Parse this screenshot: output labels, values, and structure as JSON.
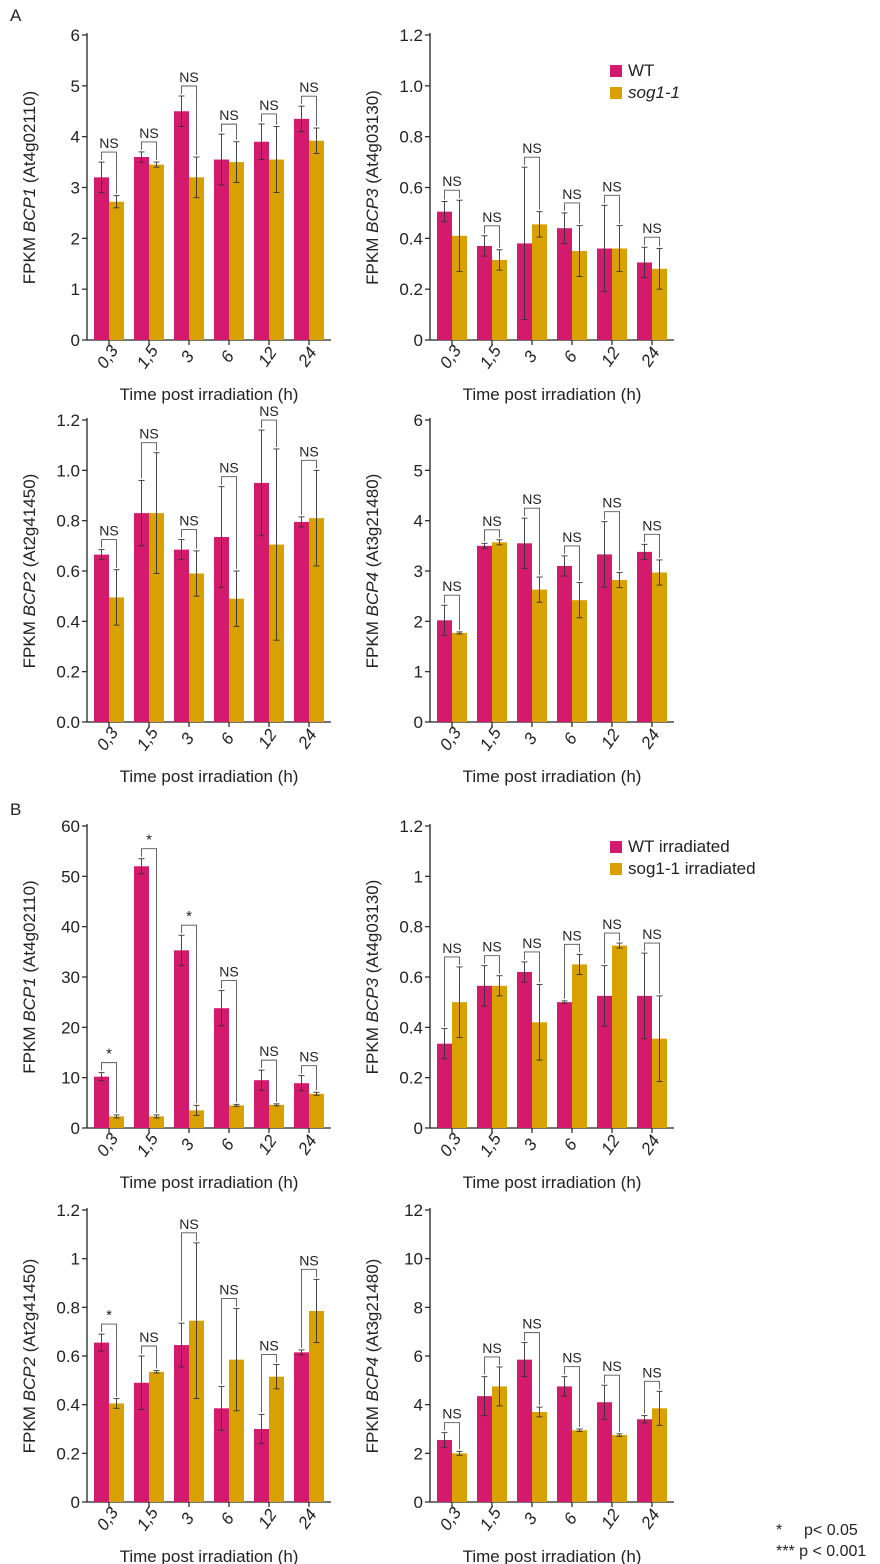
{
  "panels": {
    "A": "A",
    "B": "B"
  },
  "colors": {
    "wt": "#d41a6c",
    "sog": "#d9a100"
  },
  "legend_A": {
    "wt": "WT",
    "sog": "sog1-1"
  },
  "legend_B": {
    "wt": "WT irradiated",
    "sog": "sog1-1 irradiated"
  },
  "footnotes": [
    {
      "mark": "*",
      "text": "p< 0.05"
    },
    {
      "mark": "***",
      "text": "p < 0.001"
    }
  ],
  "chart_data": [
    {
      "type": "bar",
      "panel": "A",
      "categories": [
        "0,3",
        "1,5",
        "3",
        "6",
        "12",
        "24"
      ],
      "xlabel": "Time post irradiation (h)",
      "ylabel": {
        "pre": "FPKM ",
        "gene": "BCP1",
        "post": " (At4g02110)"
      },
      "ylim": [
        0,
        6
      ],
      "yticks": [
        "0",
        "1",
        "2",
        "3",
        "4",
        "5",
        "6"
      ],
      "series": [
        {
          "name": "WT",
          "values": [
            3.2,
            3.6,
            4.5,
            3.55,
            3.9,
            4.35
          ],
          "err": [
            0.3,
            0.1,
            0.3,
            0.5,
            0.35,
            0.25
          ]
        },
        {
          "name": "sog1-1",
          "values": [
            2.72,
            3.45,
            3.2,
            3.5,
            3.55,
            3.92
          ],
          "err": [
            0.12,
            0.05,
            0.4,
            0.4,
            0.65,
            0.25
          ]
        }
      ],
      "annotations": [
        "NS",
        "NS",
        "NS",
        "NS",
        "NS",
        "NS"
      ]
    },
    {
      "type": "bar",
      "panel": "A",
      "categories": [
        "0,3",
        "1,5",
        "3",
        "6",
        "12",
        "24"
      ],
      "xlabel": "Time post irradiation (h)",
      "ylabel": {
        "pre": "FPKM ",
        "gene": "BCP3",
        "post": " (At4g03130)"
      },
      "ylim": [
        0,
        1.2
      ],
      "yticks": [
        "0",
        "0.2",
        "0.4",
        "0.6",
        "0.8",
        "1.0",
        "1.2"
      ],
      "series": [
        {
          "name": "WT",
          "values": [
            0.505,
            0.37,
            0.38,
            0.44,
            0.36,
            0.305
          ],
          "err": [
            0.04,
            0.04,
            0.3,
            0.06,
            0.17,
            0.06
          ]
        },
        {
          "name": "sog1-1",
          "values": [
            0.41,
            0.315,
            0.455,
            0.35,
            0.36,
            0.28
          ],
          "err": [
            0.14,
            0.04,
            0.05,
            0.1,
            0.09,
            0.08
          ]
        }
      ],
      "annotations": [
        "NS",
        "NS",
        "NS",
        "NS",
        "NS",
        "NS"
      ]
    },
    {
      "type": "bar",
      "panel": "A",
      "categories": [
        "0,3",
        "1,5",
        "3",
        "6",
        "12",
        "24"
      ],
      "xlabel": "Time post irradiation (h)",
      "ylabel": {
        "pre": "FPKM ",
        "gene": "BCP2",
        "post": " (At2g41450)"
      },
      "ylim": [
        0,
        1.2
      ],
      "yticks": [
        "0.0",
        "0.2",
        "0.4",
        "0.6",
        "0.8",
        "1.0",
        "1.2"
      ],
      "series": [
        {
          "name": "WT",
          "values": [
            0.665,
            0.83,
            0.685,
            0.735,
            0.95,
            0.795
          ],
          "err": [
            0.02,
            0.13,
            0.04,
            0.2,
            0.21,
            0.02
          ]
        },
        {
          "name": "sog1-1",
          "values": [
            0.495,
            0.83,
            0.59,
            0.49,
            0.705,
            0.81
          ],
          "err": [
            0.11,
            0.24,
            0.09,
            0.11,
            0.38,
            0.19
          ]
        }
      ],
      "annotations": [
        "NS",
        "NS",
        "NS",
        "NS",
        "NS",
        "NS"
      ]
    },
    {
      "type": "bar",
      "panel": "A",
      "categories": [
        "0,3",
        "1,5",
        "3",
        "6",
        "12",
        "24"
      ],
      "xlabel": "Time post irradiation (h)",
      "ylabel": {
        "pre": "FPKM ",
        "gene": "BCP4",
        "post": " (At3g21480)"
      },
      "ylim": [
        0,
        6
      ],
      "yticks": [
        "0",
        "1",
        "2",
        "3",
        "4",
        "5",
        "6"
      ],
      "series": [
        {
          "name": "WT",
          "values": [
            2.02,
            3.5,
            3.55,
            3.1,
            3.33,
            3.38
          ],
          "err": [
            0.3,
            0.05,
            0.5,
            0.2,
            0.65,
            0.15
          ]
        },
        {
          "name": "sog1-1",
          "values": [
            1.77,
            3.57,
            2.63,
            2.42,
            2.82,
            2.97
          ],
          "err": [
            0.02,
            0.05,
            0.25,
            0.35,
            0.15,
            0.25
          ]
        }
      ],
      "annotations": [
        "NS",
        "NS",
        "NS",
        "NS",
        "NS",
        "NS"
      ]
    },
    {
      "type": "bar",
      "panel": "B",
      "categories": [
        "0,3",
        "1,5",
        "3",
        "6",
        "12",
        "24"
      ],
      "xlabel": "Time post irradiation (h)",
      "ylabel": {
        "pre": "FPKM ",
        "gene": "BCP1",
        "post": " (At4g02110)"
      },
      "ylim": [
        0,
        60
      ],
      "yticks": [
        "0",
        "10",
        "20",
        "30",
        "40",
        "50",
        "60"
      ],
      "series": [
        {
          "name": "WT irradiated",
          "values": [
            10.2,
            52.0,
            35.3,
            23.8,
            9.5,
            8.9
          ],
          "err": [
            0.8,
            1.5,
            3.0,
            3.5,
            2.0,
            1.5
          ]
        },
        {
          "name": "sog1-1 irradiated",
          "values": [
            2.3,
            2.3,
            3.5,
            4.5,
            4.6,
            6.8
          ],
          "err": [
            0.3,
            0.3,
            1.0,
            0.2,
            0.2,
            0.3
          ]
        }
      ],
      "annotations": [
        "*",
        "*",
        "*",
        "NS",
        "NS",
        "NS"
      ]
    },
    {
      "type": "bar",
      "panel": "B",
      "categories": [
        "0,3",
        "1,5",
        "3",
        "6",
        "12",
        "24"
      ],
      "xlabel": "Time post irradiation (h)",
      "ylabel": {
        "pre": "FPKM ",
        "gene": "BCP3",
        "post": " (At4g03130)"
      },
      "ylim": [
        0,
        1.2
      ],
      "yticks": [
        "0",
        "0.2",
        "0.4",
        "0.6",
        "0.8",
        "1",
        "1.2"
      ],
      "series": [
        {
          "name": "WT irradiated",
          "values": [
            0.335,
            0.565,
            0.62,
            0.5,
            0.525,
            0.525
          ],
          "err": [
            0.06,
            0.08,
            0.04,
            0.005,
            0.12,
            0.17
          ]
        },
        {
          "name": "sog1-1 irradiated",
          "values": [
            0.5,
            0.565,
            0.42,
            0.65,
            0.725,
            0.355
          ],
          "err": [
            0.14,
            0.04,
            0.15,
            0.04,
            0.01,
            0.17
          ]
        }
      ],
      "annotations": [
        "NS",
        "NS",
        "NS",
        "NS",
        "NS",
        "NS"
      ]
    },
    {
      "type": "bar",
      "panel": "B",
      "categories": [
        "0,3",
        "1,5",
        "3",
        "6",
        "12",
        "24"
      ],
      "xlabel": "Time post irradiation (h)",
      "ylabel": {
        "pre": "FPKM ",
        "gene": "BCP2",
        "post": " (At2g41450)"
      },
      "ylim": [
        0,
        1.2
      ],
      "yticks": [
        "0",
        "0.2",
        "0.4",
        "0.6",
        "0.8",
        "1",
        "1.2"
      ],
      "series": [
        {
          "name": "WT irradiated",
          "values": [
            0.655,
            0.49,
            0.645,
            0.385,
            0.3,
            0.615
          ],
          "err": [
            0.035,
            0.11,
            0.09,
            0.09,
            0.06,
            0.01
          ]
        },
        {
          "name": "sog1-1 irradiated",
          "values": [
            0.405,
            0.535,
            0.745,
            0.585,
            0.515,
            0.785
          ],
          "err": [
            0.02,
            0.005,
            0.32,
            0.21,
            0.05,
            0.13
          ]
        }
      ],
      "annotations": [
        "*",
        "NS",
        "NS",
        "NS",
        "NS",
        "NS"
      ]
    },
    {
      "type": "bar",
      "panel": "B",
      "categories": [
        "0,3",
        "1,5",
        "3",
        "6",
        "12",
        "24"
      ],
      "xlabel": "Time post irradiation (h)",
      "ylabel": {
        "pre": "FPKM ",
        "gene": "BCP4",
        "post": " (At3g21480)"
      },
      "ylim": [
        0,
        12
      ],
      "yticks": [
        "0",
        "2",
        "4",
        "6",
        "8",
        "10",
        "12"
      ],
      "series": [
        {
          "name": "WT irradiated",
          "values": [
            2.55,
            4.35,
            5.85,
            4.75,
            4.1,
            3.4
          ],
          "err": [
            0.3,
            0.8,
            0.7,
            0.4,
            0.7,
            0.15
          ]
        },
        {
          "name": "sog1-1 irradiated",
          "values": [
            2.0,
            4.75,
            3.7,
            2.95,
            2.75,
            3.85
          ],
          "err": [
            0.08,
            0.8,
            0.2,
            0.05,
            0.05,
            0.7
          ]
        }
      ],
      "annotations": [
        "NS",
        "NS",
        "NS",
        "NS",
        "NS",
        "NS"
      ]
    }
  ]
}
